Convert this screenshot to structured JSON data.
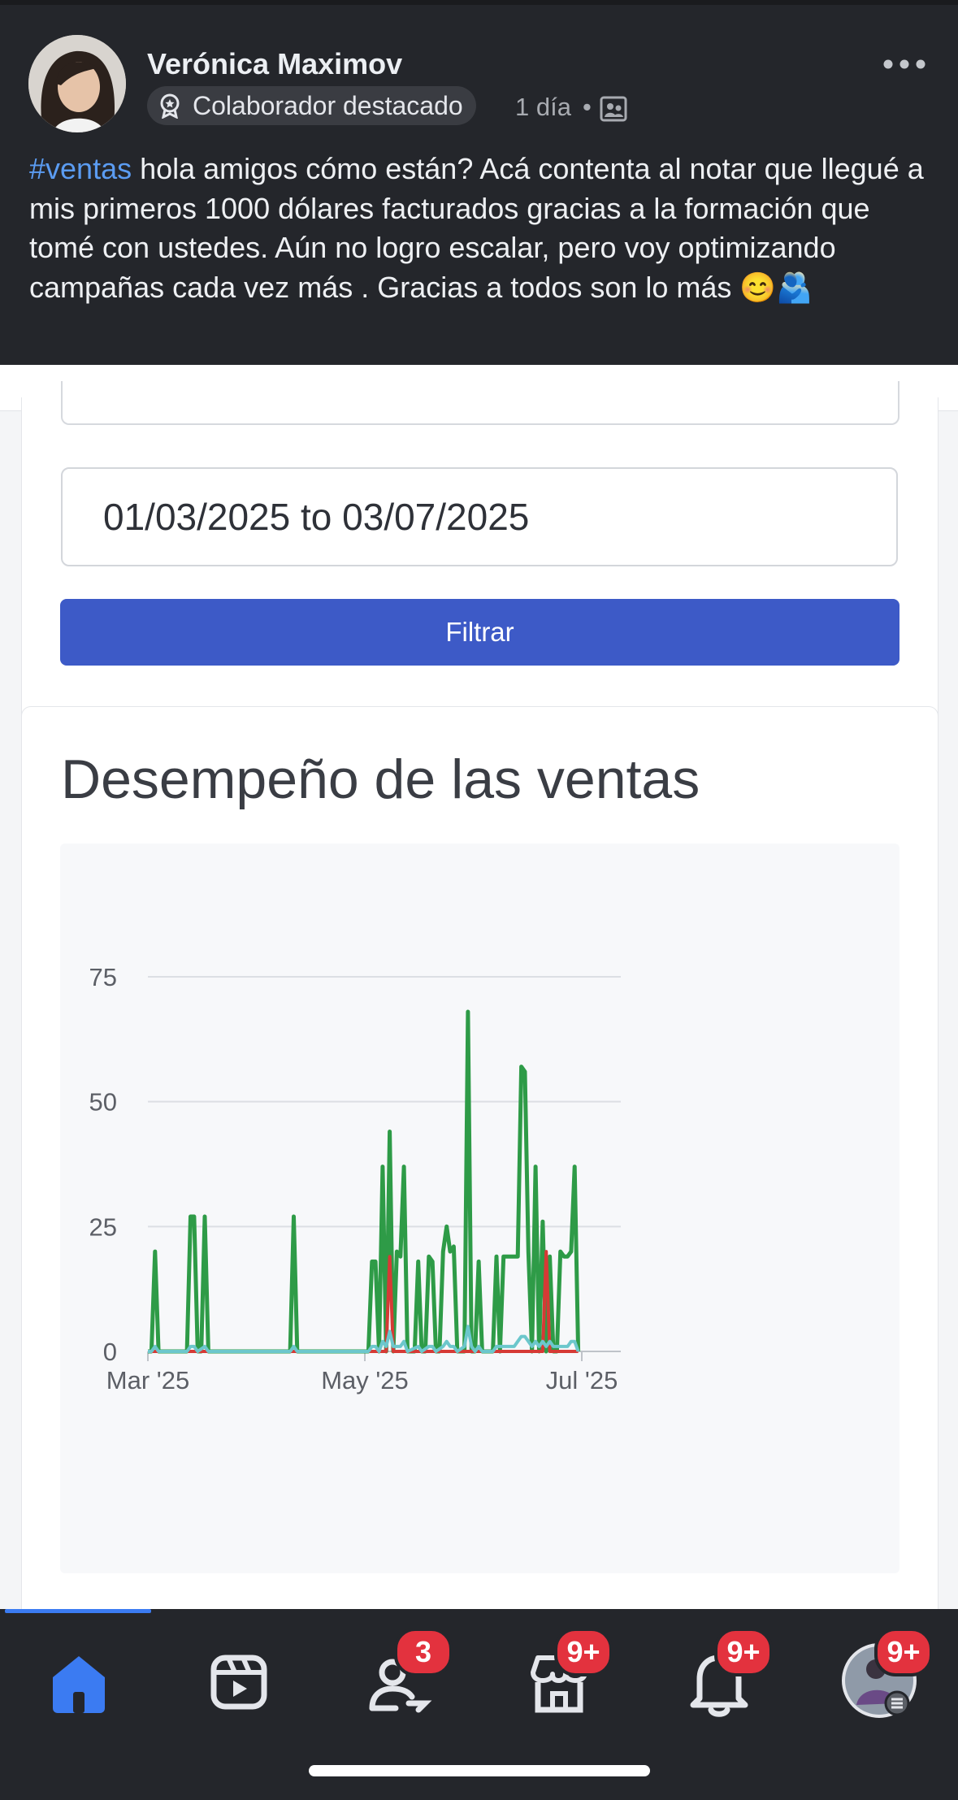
{
  "post": {
    "author": "Verónica Maximov",
    "badge": "Colaborador destacado",
    "time": "1 día",
    "separator": "•",
    "hashtag": "#ventas",
    "text": " hola amigos cómo están? Acá contenta al notar que llegué a mis primeros 1000 dólares facturados gracias a la formación que tomé con ustedes.  Aún no logro escalar, pero voy optimizando campañas cada vez más . Gracias a todos son lo más 😊🫂"
  },
  "filter": {
    "date_range": "01/03/2025 to 03/07/2025",
    "button_label": "Filtrar"
  },
  "chart_title": "Desempeño de las ventas",
  "chart_data": {
    "type": "line",
    "ylim": [
      0,
      75
    ],
    "y_ticks": [
      "0",
      "25",
      "50",
      "75"
    ],
    "x_ticks": [
      "Mar '25",
      "May '25",
      "Jul '25"
    ],
    "x_ticks_days": [
      0,
      61,
      122
    ],
    "grid": true,
    "series": [
      {
        "color": "#2e9b47",
        "points": [
          [
            0,
            0
          ],
          [
            1,
            0
          ],
          [
            2,
            20
          ],
          [
            3,
            0
          ],
          [
            11,
            0
          ],
          [
            12,
            27
          ],
          [
            13,
            27
          ],
          [
            14,
            0
          ],
          [
            15,
            0
          ],
          [
            16,
            27
          ],
          [
            17,
            0
          ],
          [
            40,
            0
          ],
          [
            41,
            27
          ],
          [
            42,
            0
          ],
          [
            62,
            0
          ],
          [
            63,
            18
          ],
          [
            64,
            18
          ],
          [
            65,
            0
          ],
          [
            66,
            37
          ],
          [
            67,
            0
          ],
          [
            68,
            44
          ],
          [
            69,
            0
          ],
          [
            70,
            20
          ],
          [
            71,
            19
          ],
          [
            72,
            37
          ],
          [
            73,
            0
          ],
          [
            75,
            0
          ],
          [
            76,
            18
          ],
          [
            77,
            0
          ],
          [
            78,
            0
          ],
          [
            79,
            19
          ],
          [
            80,
            18
          ],
          [
            81,
            0
          ],
          [
            82,
            0
          ],
          [
            83,
            20
          ],
          [
            84,
            25
          ],
          [
            85,
            20
          ],
          [
            86,
            21
          ],
          [
            87,
            0
          ],
          [
            88,
            0
          ],
          [
            89,
            0
          ],
          [
            90,
            68
          ],
          [
            91,
            0
          ],
          [
            92,
            0
          ],
          [
            93,
            18
          ],
          [
            94,
            0
          ],
          [
            97,
            0
          ],
          [
            98,
            19
          ],
          [
            99,
            0
          ],
          [
            100,
            19
          ],
          [
            101,
            19
          ],
          [
            102,
            19
          ],
          [
            103,
            19
          ],
          [
            104,
            19
          ],
          [
            105,
            57
          ],
          [
            106,
            56
          ],
          [
            107,
            20
          ],
          [
            108,
            0
          ],
          [
            109,
            37
          ],
          [
            110,
            0
          ],
          [
            111,
            26
          ],
          [
            112,
            0
          ],
          [
            113,
            19
          ],
          [
            114,
            0
          ],
          [
            115,
            0
          ],
          [
            116,
            20
          ],
          [
            117,
            19
          ],
          [
            118,
            19
          ],
          [
            119,
            20
          ],
          [
            120,
            37
          ],
          [
            121,
            0
          ]
        ]
      },
      {
        "color": "#d63a35",
        "points": [
          [
            0,
            0
          ],
          [
            67,
            0
          ],
          [
            68,
            19
          ],
          [
            69,
            0
          ],
          [
            111,
            0
          ],
          [
            112,
            20
          ],
          [
            113,
            0
          ],
          [
            121,
            0
          ]
        ]
      },
      {
        "color": "#6cc7cc",
        "points": [
          [
            0,
            0
          ],
          [
            1,
            0
          ],
          [
            2,
            1
          ],
          [
            3,
            0
          ],
          [
            11,
            0
          ],
          [
            12,
            1
          ],
          [
            13,
            1
          ],
          [
            14,
            0
          ],
          [
            16,
            1
          ],
          [
            17,
            0
          ],
          [
            40,
            0
          ],
          [
            41,
            1
          ],
          [
            42,
            0
          ],
          [
            62,
            0
          ],
          [
            63,
            1
          ],
          [
            64,
            1
          ],
          [
            65,
            0
          ],
          [
            66,
            2
          ],
          [
            67,
            1
          ],
          [
            68,
            4
          ],
          [
            69,
            1
          ],
          [
            70,
            1
          ],
          [
            71,
            1
          ],
          [
            72,
            2
          ],
          [
            73,
            0
          ],
          [
            76,
            1
          ],
          [
            77,
            0
          ],
          [
            79,
            1
          ],
          [
            80,
            1
          ],
          [
            81,
            0
          ],
          [
            83,
            1
          ],
          [
            84,
            2
          ],
          [
            85,
            1
          ],
          [
            86,
            1
          ],
          [
            87,
            0
          ],
          [
            89,
            1
          ],
          [
            90,
            5
          ],
          [
            91,
            1
          ],
          [
            92,
            0
          ],
          [
            93,
            1
          ],
          [
            94,
            0
          ],
          [
            97,
            0
          ],
          [
            98,
            1
          ],
          [
            99,
            1
          ],
          [
            100,
            1
          ],
          [
            101,
            1
          ],
          [
            102,
            1
          ],
          [
            103,
            1
          ],
          [
            104,
            2
          ],
          [
            105,
            3
          ],
          [
            106,
            3
          ],
          [
            107,
            2
          ],
          [
            108,
            1
          ],
          [
            109,
            2
          ],
          [
            110,
            1
          ],
          [
            111,
            2
          ],
          [
            112,
            1
          ],
          [
            113,
            2
          ],
          [
            114,
            1
          ],
          [
            115,
            1
          ],
          [
            116,
            1
          ],
          [
            117,
            1
          ],
          [
            118,
            1
          ],
          [
            119,
            2
          ],
          [
            120,
            2
          ],
          [
            121,
            0
          ]
        ]
      }
    ]
  },
  "nav": {
    "items": [
      {
        "name": "home",
        "badge": ""
      },
      {
        "name": "reels",
        "badge": ""
      },
      {
        "name": "friends",
        "badge": "3"
      },
      {
        "name": "marketplace",
        "badge": "9+"
      },
      {
        "name": "notifications",
        "badge": "9+"
      },
      {
        "name": "profile",
        "badge": "9+"
      }
    ]
  }
}
